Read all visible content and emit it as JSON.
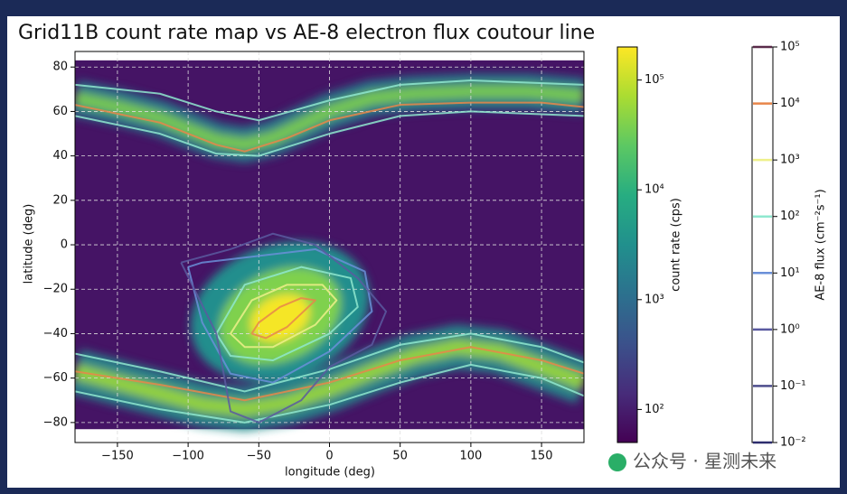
{
  "chart_data": {
    "type": "heatmap",
    "title": "Grid11B count rate map vs AE-8 electron flux coutour line",
    "xlabel": "longitude (deg)",
    "ylabel": "latitude (deg)",
    "xlim": [
      -180,
      180
    ],
    "ylim": [
      -89,
      87
    ],
    "xticks": [
      {
        "value": -150,
        "label": "−150"
      },
      {
        "value": -100,
        "label": "−100"
      },
      {
        "value": -50,
        "label": "−50"
      },
      0,
      50,
      100,
      150
    ],
    "yticks": [
      {
        "value": -80,
        "label": "−80"
      },
      {
        "value": -60,
        "label": "−60"
      },
      {
        "value": -40,
        "label": "−40"
      },
      {
        "value": -20,
        "label": "−20"
      },
      0,
      20,
      40,
      60,
      80
    ],
    "grid": true,
    "heatmap": {
      "background": {
        "lon": [
          -180,
          180
        ],
        "lat": [
          -83,
          83
        ],
        "value": 80
      },
      "belts": [
        {
          "lon": [
            -180,
            -150,
            -120,
            -100,
            -80,
            -60,
            -40,
            -20,
            0,
            30,
            60,
            100,
            140,
            180
          ],
          "lat": [
            66,
            62,
            57,
            52,
            47,
            45,
            48,
            54,
            60,
            66,
            68,
            69,
            69,
            67
          ],
          "width": 16,
          "value": 2000
        },
        {
          "lon": [
            -180,
            -150,
            -120,
            -100,
            -80,
            -60,
            -40,
            -20,
            0,
            30,
            60,
            100,
            140,
            180
          ],
          "lat": [
            66,
            62,
            57,
            52,
            47,
            45,
            48,
            54,
            60,
            66,
            68,
            69,
            69,
            67
          ],
          "width": 6,
          "value": 40000
        },
        {
          "lon": [
            -180,
            -150,
            -120,
            -90,
            -60,
            -30,
            0,
            30,
            60,
            90,
            120,
            150,
            180
          ],
          "lat": [
            -57,
            -62,
            -67,
            -72,
            -74,
            -71,
            -65,
            -57,
            -50,
            -46,
            -48,
            -55,
            -62
          ],
          "width": 20,
          "value": 3000
        },
        {
          "lon": [
            -180,
            -150,
            -120,
            -90,
            -60,
            -30,
            0,
            30,
            60,
            90,
            120,
            150,
            180
          ],
          "lat": [
            -57,
            -62,
            -67,
            -72,
            -74,
            -71,
            -65,
            -57,
            -50,
            -46,
            -48,
            -55,
            -62
          ],
          "width": 7,
          "value": 60000
        }
      ],
      "spots": [
        {
          "lon": -35,
          "lat": -30,
          "rx": 65,
          "ry": 30,
          "angle": -20,
          "value": 3000
        },
        {
          "lon": -35,
          "lat": -32,
          "rx": 45,
          "ry": 20,
          "angle": -25,
          "value": 40000
        },
        {
          "lon": -35,
          "lat": -33,
          "rx": 22,
          "ry": 10,
          "angle": -25,
          "value": 180000
        }
      ]
    },
    "colorbar": {
      "label": "count rate (cps)",
      "scale": "log",
      "lim": [
        50,
        200000
      ],
      "ticks": [
        {
          "value": 100,
          "label": "10²"
        },
        {
          "value": 1000,
          "label": "10³"
        },
        {
          "value": 10000,
          "label": "10⁴"
        },
        {
          "value": 100000,
          "label": "10⁵"
        }
      ]
    },
    "contour_colorbar": {
      "label": "AE-8 flux (cm⁻²s⁻¹)",
      "scale": "log",
      "lim": [
        0.01,
        100000
      ],
      "ticks": [
        {
          "value": 0.01,
          "label": "10⁻²",
          "color": "#2d2d6d"
        },
        {
          "value": 0.1,
          "label": "10⁻¹",
          "color": "#4d4d8d"
        },
        {
          "value": 1,
          "label": "10⁰",
          "color": "#5a5aa0"
        },
        {
          "value": 10,
          "label": "10¹",
          "color": "#6a8fd8"
        },
        {
          "value": 100,
          "label": "10²",
          "color": "#8fe8cf"
        },
        {
          "value": 1000,
          "label": "10³",
          "color": "#eef08a"
        },
        {
          "value": 10000,
          "label": "10⁴",
          "color": "#e8864a"
        },
        {
          "value": 100000,
          "label": "10⁵",
          "color": "#5a2a4a"
        }
      ]
    },
    "contours": [
      {
        "level": 10000,
        "lon": [
          -55,
          -45,
          -30,
          -15,
          -10,
          -20,
          -35,
          -50,
          -55
        ],
        "lat": [
          -40,
          -42,
          -37,
          -28,
          -25,
          -24,
          -28,
          -35,
          -40
        ]
      },
      {
        "level": 10000,
        "lon": [
          -180,
          -120,
          -80,
          -60,
          -30,
          0,
          50,
          100,
          150,
          180
        ],
        "lat": [
          63,
          55,
          45,
          42,
          48,
          56,
          63,
          64,
          64,
          62
        ]
      },
      {
        "level": 10000,
        "lon": [
          -180,
          -120,
          -60,
          0,
          50,
          100,
          150,
          180
        ],
        "lat": [
          -57,
          -63,
          -70,
          -62,
          -52,
          -46,
          -52,
          -58
        ]
      },
      {
        "level": 1000,
        "lon": [
          -70,
          -60,
          -40,
          -10,
          5,
          -5,
          -30,
          -55,
          -70
        ],
        "lat": [
          -40,
          -46,
          -46,
          -36,
          -25,
          -18,
          -18,
          -25,
          -40
        ]
      },
      {
        "level": 100,
        "lon": [
          -80,
          -70,
          -40,
          0,
          20,
          15,
          -20,
          -60,
          -80
        ],
        "lat": [
          -40,
          -50,
          -52,
          -40,
          -28,
          -15,
          -10,
          -18,
          -40
        ]
      },
      {
        "level": 100,
        "lon": [
          -180,
          -120,
          -80,
          -50,
          0,
          50,
          100,
          180
        ],
        "lat": [
          72,
          68,
          60,
          56,
          65,
          72,
          74,
          72
        ]
      },
      {
        "level": 100,
        "lon": [
          -180,
          -120,
          -80,
          -50,
          0,
          50,
          100,
          180
        ],
        "lat": [
          58,
          50,
          41,
          40,
          50,
          58,
          60,
          58
        ]
      },
      {
        "level": 100,
        "lon": [
          -180,
          -120,
          -60,
          0,
          50,
          100,
          150,
          180
        ],
        "lat": [
          -49,
          -57,
          -66,
          -56,
          -45,
          -40,
          -46,
          -53
        ]
      },
      {
        "level": 100,
        "lon": [
          -180,
          -120,
          -60,
          0,
          50,
          100,
          150,
          180
        ],
        "lat": [
          -66,
          -74,
          -80,
          -72,
          -62,
          -54,
          -60,
          -68
        ]
      },
      {
        "level": 10,
        "lon": [
          -100,
          -90,
          -70,
          -40,
          0,
          30,
          25,
          -10,
          -50,
          -90,
          -100
        ],
        "lat": [
          -10,
          -35,
          -58,
          -62,
          -48,
          -30,
          -12,
          -2,
          -5,
          -8,
          -10
        ]
      },
      {
        "level": 1,
        "lon": [
          -105,
          -80,
          -70,
          -50,
          -20,
          0,
          30,
          40,
          20,
          -10,
          -40,
          -70,
          -105
        ],
        "lat": [
          -8,
          -40,
          -75,
          -80,
          -70,
          -55,
          -45,
          -30,
          -15,
          0,
          5,
          -2,
          -8
        ]
      }
    ],
    "watermark": "公众号 · 星测未来"
  }
}
